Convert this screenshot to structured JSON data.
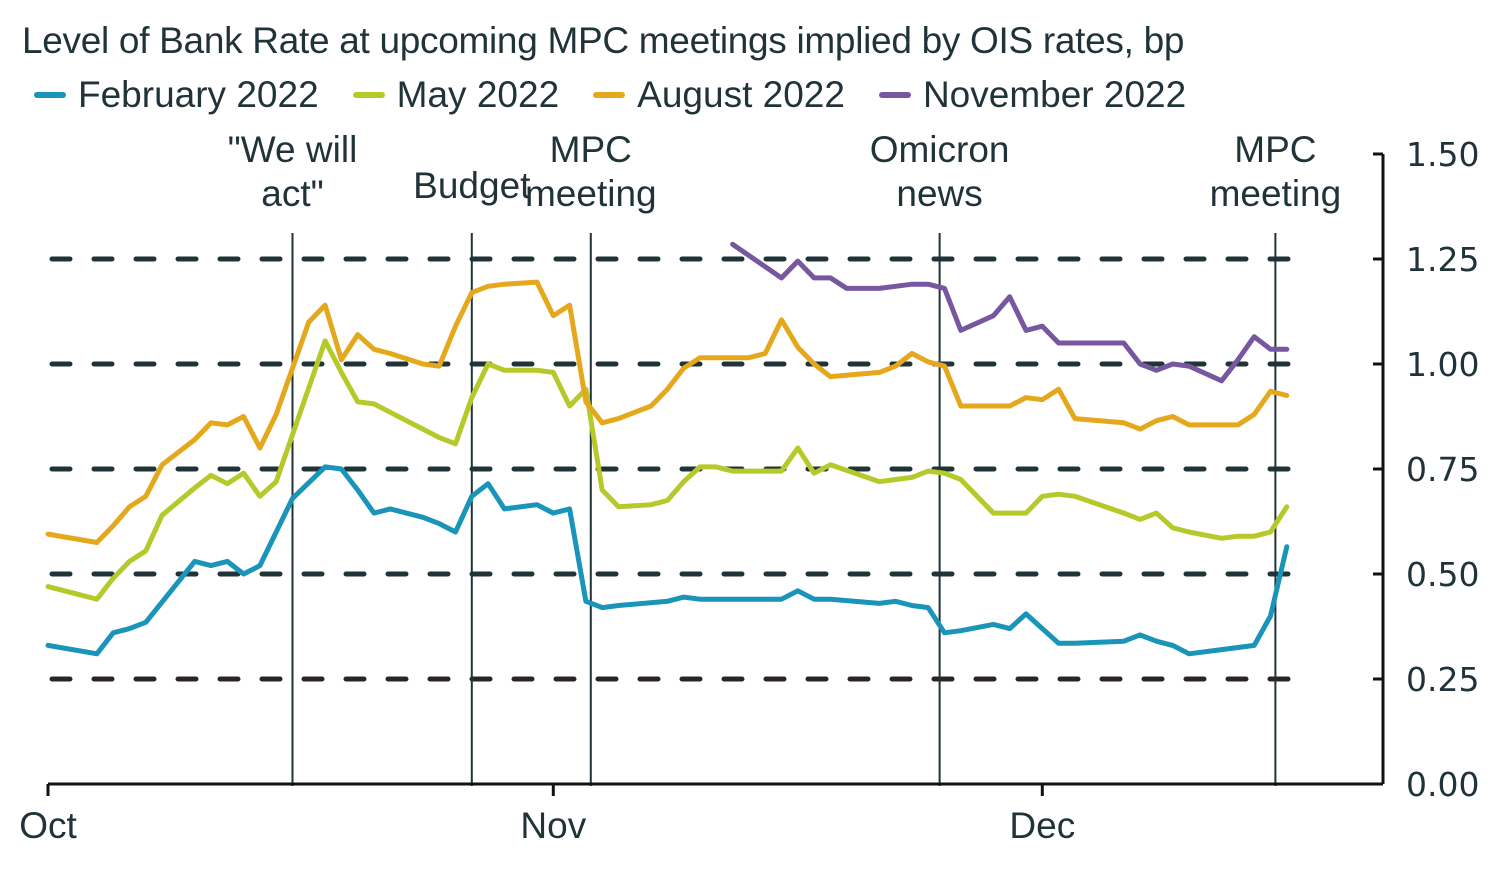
{
  "chart_data": {
    "type": "line",
    "title": "Level of Bank Rate at upcoming MPC meetings implied by OIS rates, bp",
    "xlabel": "",
    "ylabel": "",
    "x_unit": "days since 1 Oct 2021",
    "ylim": [
      0,
      1.5
    ],
    "yticks": [
      "0.00",
      "0.25",
      "0.50",
      "0.75",
      "1.00",
      "1.25",
      "1.50"
    ],
    "ytick_values": [
      0,
      0.25,
      0.5,
      0.75,
      1.0,
      1.25,
      1.5
    ],
    "y_axis_side": "right",
    "xlim": [
      0,
      81
    ],
    "xticks": [
      {
        "label": "Oct",
        "day": 0
      },
      {
        "label": "Nov",
        "day": 31
      },
      {
        "label": "Dec",
        "day": 61
      }
    ],
    "gridlines": {
      "style": "dashed",
      "values": [
        0.25,
        0.5,
        0.75,
        1.0,
        1.25
      ]
    },
    "legend_position": "top",
    "events": [
      {
        "label_lines": [
          "\"We will",
          "act\""
        ],
        "day": 15
      },
      {
        "label_lines": [
          "Budget"
        ],
        "day": 26
      },
      {
        "label_lines": [
          "MPC",
          "meeting"
        ],
        "day": 33.3
      },
      {
        "label_lines": [
          "Omicron",
          "news"
        ],
        "day": 54.7
      },
      {
        "label_lines": [
          "MPC",
          "meeting"
        ],
        "day": 75.3
      }
    ],
    "series": [
      {
        "name": "February 2022",
        "color": "#1a94b8",
        "x": [
          0,
          3,
          4,
          5,
          6,
          9,
          10,
          11,
          12,
          13,
          14,
          15,
          17,
          18,
          19,
          20,
          21,
          23,
          24,
          25,
          26,
          27,
          28,
          30,
          31,
          32,
          33,
          34,
          35,
          38,
          39,
          40,
          41,
          42,
          43,
          44,
          45,
          46,
          47,
          48,
          51,
          52,
          53,
          54,
          55,
          56,
          58,
          59,
          60,
          61,
          62,
          63,
          66,
          67,
          68,
          69,
          70,
          72,
          73,
          74,
          75,
          76
        ],
        "values": [
          0.33,
          0.31,
          0.36,
          0.37,
          0.385,
          0.53,
          0.52,
          0.53,
          0.5,
          0.52,
          0.6,
          0.68,
          0.755,
          0.75,
          0.7,
          0.645,
          0.655,
          0.635,
          0.62,
          0.6,
          0.685,
          0.715,
          0.655,
          0.665,
          0.645,
          0.655,
          0.435,
          0.42,
          0.425,
          0.435,
          0.445,
          0.44,
          0.44,
          0.44,
          0.44,
          0.44,
          0.44,
          0.46,
          0.44,
          0.44,
          0.43,
          0.435,
          0.425,
          0.42,
          0.36,
          0.365,
          0.38,
          0.37,
          0.405,
          0.37,
          0.335,
          0.335,
          0.34,
          0.355,
          0.34,
          0.33,
          0.31,
          0.32,
          0.325,
          0.33,
          0.4,
          0.565
        ]
      },
      {
        "name": "May 2022",
        "color": "#b5c92a",
        "x": [
          0,
          3,
          4,
          5,
          6,
          7,
          9,
          10,
          11,
          12,
          13,
          14,
          17,
          18,
          19,
          20,
          21,
          23,
          24,
          25,
          26,
          27,
          28,
          30,
          31,
          32,
          33,
          34,
          35,
          37,
          38,
          39,
          40,
          41,
          42,
          43,
          44,
          45,
          46,
          47,
          48,
          51,
          52,
          53,
          54,
          55,
          56,
          58,
          59,
          60,
          61,
          62,
          63,
          66,
          67,
          68,
          69,
          70,
          72,
          73,
          74,
          75,
          76
        ],
        "values": [
          0.47,
          0.44,
          0.49,
          0.53,
          0.555,
          0.64,
          0.705,
          0.735,
          0.715,
          0.74,
          0.685,
          0.72,
          1.055,
          0.98,
          0.91,
          0.905,
          0.885,
          0.845,
          0.825,
          0.81,
          0.92,
          1.0,
          0.985,
          0.985,
          0.98,
          0.9,
          0.94,
          0.7,
          0.66,
          0.665,
          0.675,
          0.72,
          0.755,
          0.755,
          0.745,
          0.745,
          0.745,
          0.745,
          0.8,
          0.74,
          0.76,
          0.72,
          0.725,
          0.73,
          0.745,
          0.74,
          0.725,
          0.645,
          0.645,
          0.645,
          0.685,
          0.69,
          0.685,
          0.645,
          0.63,
          0.645,
          0.61,
          0.6,
          0.585,
          0.59,
          0.59,
          0.6,
          0.66
        ]
      },
      {
        "name": "August 2022",
        "color": "#e5a81c",
        "x": [
          0,
          3,
          4,
          5,
          6,
          7,
          9,
          10,
          11,
          12,
          13,
          14,
          16,
          17,
          18,
          19,
          20,
          21,
          23,
          24,
          25,
          26,
          27,
          28,
          30,
          31,
          32,
          33,
          34,
          35,
          37,
          38,
          39,
          40,
          41,
          42,
          43,
          44,
          45,
          46,
          47,
          48,
          51,
          52,
          53,
          54,
          55,
          56,
          58,
          59,
          60,
          61,
          62,
          63,
          66,
          67,
          68,
          69,
          70,
          72,
          73,
          74,
          75,
          76
        ],
        "values": [
          0.595,
          0.575,
          0.615,
          0.66,
          0.685,
          0.76,
          0.82,
          0.86,
          0.855,
          0.875,
          0.8,
          0.88,
          1.1,
          1.14,
          1.01,
          1.07,
          1.035,
          1.025,
          1.0,
          0.995,
          1.09,
          1.17,
          1.185,
          1.19,
          1.195,
          1.115,
          1.14,
          0.91,
          0.86,
          0.87,
          0.9,
          0.94,
          0.99,
          1.015,
          1.015,
          1.015,
          1.015,
          1.025,
          1.105,
          1.04,
          1.0,
          0.97,
          0.98,
          0.995,
          1.025,
          1.005,
          0.995,
          0.9,
          0.9,
          0.9,
          0.92,
          0.915,
          0.94,
          0.87,
          0.86,
          0.845,
          0.865,
          0.875,
          0.855,
          0.855,
          0.855,
          0.88,
          0.935,
          0.925
        ]
      },
      {
        "name": "November 2022",
        "color": "#7657a0",
        "x": [
          42,
          45,
          46,
          47,
          48,
          49,
          51,
          52,
          53,
          54,
          55,
          56,
          58,
          59,
          60,
          61,
          62,
          63,
          66,
          67,
          68,
          69,
          70,
          72,
          73,
          74,
          75,
          76
        ],
        "values": [
          1.285,
          1.205,
          1.245,
          1.205,
          1.205,
          1.18,
          1.18,
          1.185,
          1.19,
          1.19,
          1.18,
          1.08,
          1.115,
          1.16,
          1.08,
          1.09,
          1.05,
          1.05,
          1.05,
          1.0,
          0.985,
          1.0,
          0.995,
          0.96,
          1.01,
          1.065,
          1.035,
          1.035
        ]
      }
    ]
  }
}
